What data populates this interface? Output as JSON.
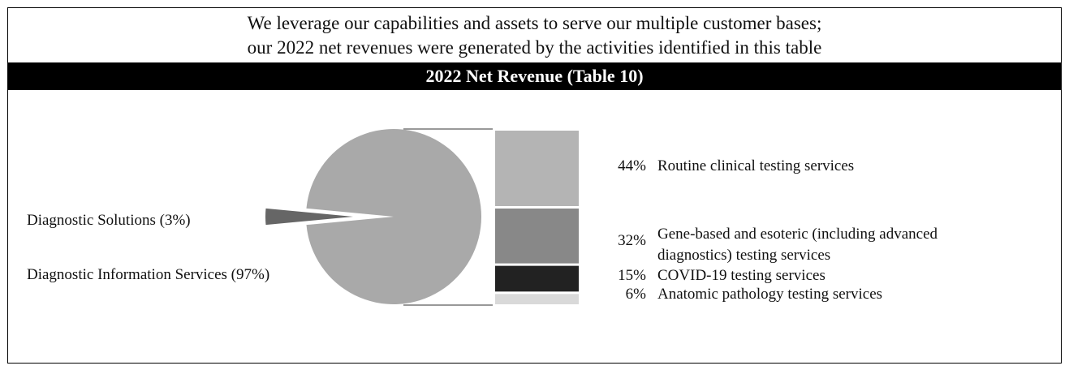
{
  "header": {
    "line1": "We leverage our capabilities and assets to serve our multiple customer bases;",
    "line2": "our 2022 net revenues were generated by the activities identified in this table"
  },
  "chart_data": [
    {
      "type": "pie",
      "title": "2022 Net Revenue (Table 10)",
      "slices": [
        {
          "label": "Diagnostic Solutions (3%)",
          "value": 3,
          "color": "#666666"
        },
        {
          "label": "Diagnostic Information Services (97%)",
          "value": 97,
          "color": "#a9a9a9"
        }
      ]
    },
    {
      "type": "bar",
      "stacked": true,
      "segments": [
        {
          "pct": "44%",
          "value": 44,
          "label": [
            "Routine clinical testing services"
          ],
          "color": "#b4b4b4"
        },
        {
          "pct": "32%",
          "value": 32,
          "label": [
            "Gene-based and esoteric (including advanced",
            "diagnostics) testing services"
          ],
          "color": "#888888"
        },
        {
          "pct": "15%",
          "value": 15,
          "label": [
            "COVID-19 testing services"
          ],
          "color": "#222222"
        },
        {
          "pct": "6%",
          "value": 6,
          "label": [
            "Anatomic pathology testing services"
          ],
          "color": "#d9d9d9"
        }
      ]
    }
  ]
}
